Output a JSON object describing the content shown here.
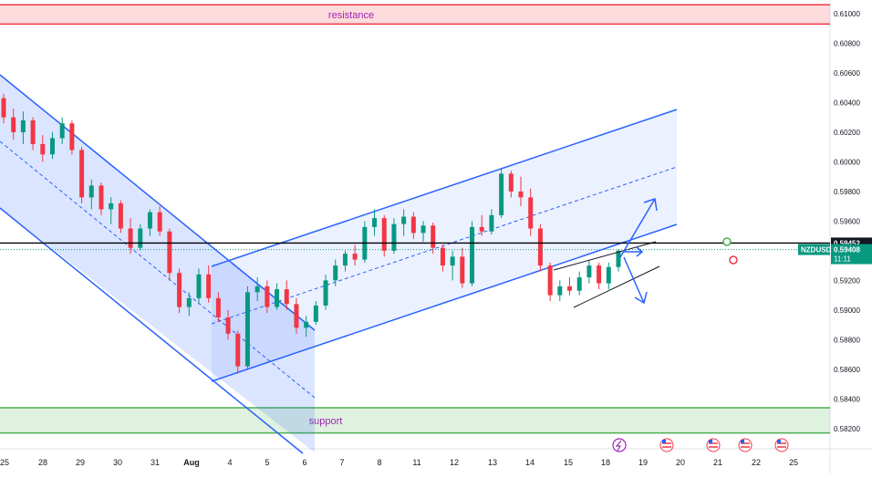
{
  "chart_data": {
    "type": "candlestick",
    "symbol": "NZDUSD",
    "price_axis": {
      "min": 0.5816,
      "max": 0.6116,
      "ticks": [
        "0.61000",
        "0.60800",
        "0.60600",
        "0.60400",
        "0.60200",
        "0.60000",
        "0.59800",
        "0.59600",
        "0.59400",
        "0.59200",
        "0.59000",
        "0.58800",
        "0.58600",
        "0.58400",
        "0.58200"
      ]
    },
    "time_axis": {
      "labels": [
        "25",
        "28",
        "29",
        "30",
        "31",
        "Aug",
        "4",
        "5",
        "6",
        "7",
        "8",
        "11",
        "12",
        "13",
        "14",
        "15",
        "18",
        "19",
        "20",
        "21",
        "22",
        "25"
      ]
    },
    "current_price": "0.59408",
    "countdown": "11:11",
    "horizontal_level": "0.59452",
    "zones": [
      {
        "label": "resistance",
        "from": 0.6093,
        "to": 0.6106,
        "color": "#f23645"
      },
      {
        "label": "support",
        "from": 0.5817,
        "to": 0.5834,
        "color": "#4caf50"
      }
    ],
    "colors": {
      "up": "#089981",
      "down": "#f23645",
      "channel": "#2962ff",
      "level_line": "#000000",
      "price_tag": "#089981",
      "label_text": "#9c27b0"
    },
    "candles": [
      [
        0.6043,
        0.6046,
        0.6026,
        0.603
      ],
      [
        0.603,
        0.6036,
        0.6015,
        0.602
      ],
      [
        0.602,
        0.6034,
        0.6012,
        0.6028
      ],
      [
        0.6028,
        0.603,
        0.6008,
        0.6012
      ],
      [
        0.6012,
        0.6018,
        0.6,
        0.6005
      ],
      [
        0.6005,
        0.602,
        0.6002,
        0.6016
      ],
      [
        0.6016,
        0.603,
        0.6012,
        0.6026
      ],
      [
        0.6026,
        0.6028,
        0.6005,
        0.6008
      ],
      [
        0.6008,
        0.601,
        0.5972,
        0.5976
      ],
      [
        0.5976,
        0.5988,
        0.5968,
        0.5984
      ],
      [
        0.5984,
        0.5986,
        0.5964,
        0.5968
      ],
      [
        0.5968,
        0.5976,
        0.5958,
        0.5972
      ],
      [
        0.5972,
        0.5974,
        0.5952,
        0.5955
      ],
      [
        0.5955,
        0.5962,
        0.5938,
        0.5942
      ],
      [
        0.5942,
        0.5958,
        0.594,
        0.5955
      ],
      [
        0.5955,
        0.5968,
        0.595,
        0.5966
      ],
      [
        0.5966,
        0.597,
        0.595,
        0.5953
      ],
      [
        0.5953,
        0.5955,
        0.592,
        0.5925
      ],
      [
        0.5925,
        0.5928,
        0.5898,
        0.5902
      ],
      [
        0.5902,
        0.5912,
        0.5896,
        0.5908
      ],
      [
        0.5908,
        0.5928,
        0.5904,
        0.5924
      ],
      [
        0.5924,
        0.593,
        0.5905,
        0.5908
      ],
      [
        0.5908,
        0.5912,
        0.5892,
        0.5895
      ],
      [
        0.5895,
        0.59,
        0.588,
        0.5884
      ],
      [
        0.5884,
        0.5886,
        0.5857,
        0.5862
      ],
      [
        0.5862,
        0.5916,
        0.586,
        0.5912
      ],
      [
        0.5912,
        0.5922,
        0.5906,
        0.5916
      ],
      [
        0.5916,
        0.592,
        0.5898,
        0.5902
      ],
      [
        0.5902,
        0.5918,
        0.59,
        0.5914
      ],
      [
        0.5914,
        0.592,
        0.59,
        0.5904
      ],
      [
        0.5904,
        0.5908,
        0.5884,
        0.5888
      ],
      [
        0.5888,
        0.5896,
        0.5882,
        0.5892
      ],
      [
        0.5892,
        0.5906,
        0.589,
        0.5903
      ],
      [
        0.5903,
        0.5924,
        0.59,
        0.592
      ],
      [
        0.592,
        0.5934,
        0.5916,
        0.593
      ],
      [
        0.593,
        0.594,
        0.5926,
        0.5938
      ],
      [
        0.5938,
        0.5944,
        0.593,
        0.5934
      ],
      [
        0.5934,
        0.596,
        0.5932,
        0.5956
      ],
      [
        0.5956,
        0.5968,
        0.595,
        0.5962
      ],
      [
        0.5962,
        0.5964,
        0.5936,
        0.594
      ],
      [
        0.594,
        0.5962,
        0.5938,
        0.5958
      ],
      [
        0.5958,
        0.5968,
        0.595,
        0.5963
      ],
      [
        0.5963,
        0.5966,
        0.5948,
        0.5952
      ],
      [
        0.5952,
        0.596,
        0.5946,
        0.5957
      ],
      [
        0.5957,
        0.5959,
        0.5938,
        0.5942
      ],
      [
        0.5942,
        0.5944,
        0.5926,
        0.593
      ],
      [
        0.593,
        0.594,
        0.592,
        0.5936
      ],
      [
        0.5936,
        0.5942,
        0.5915,
        0.5918
      ],
      [
        0.5918,
        0.596,
        0.5916,
        0.5956
      ],
      [
        0.5956,
        0.5964,
        0.595,
        0.5953
      ],
      [
        0.5953,
        0.5968,
        0.5951,
        0.5964
      ],
      [
        0.5964,
        0.5996,
        0.5962,
        0.5992
      ],
      [
        0.5992,
        0.5994,
        0.5976,
        0.598
      ],
      [
        0.598,
        0.599,
        0.597,
        0.5976
      ],
      [
        0.5976,
        0.5982,
        0.595,
        0.5955
      ],
      [
        0.5955,
        0.5958,
        0.5926,
        0.593
      ],
      [
        0.593,
        0.5932,
        0.5906,
        0.591
      ],
      [
        0.591,
        0.592,
        0.5906,
        0.5916
      ],
      [
        0.5916,
        0.5922,
        0.591,
        0.5913
      ],
      [
        0.5913,
        0.5926,
        0.591,
        0.5922
      ],
      [
        0.5922,
        0.5934,
        0.5918,
        0.593
      ],
      [
        0.593,
        0.5932,
        0.5914,
        0.5918
      ],
      [
        0.5918,
        0.5932,
        0.5914,
        0.5929
      ],
      [
        0.5929,
        0.5941,
        0.5926,
        0.594
      ]
    ]
  }
}
